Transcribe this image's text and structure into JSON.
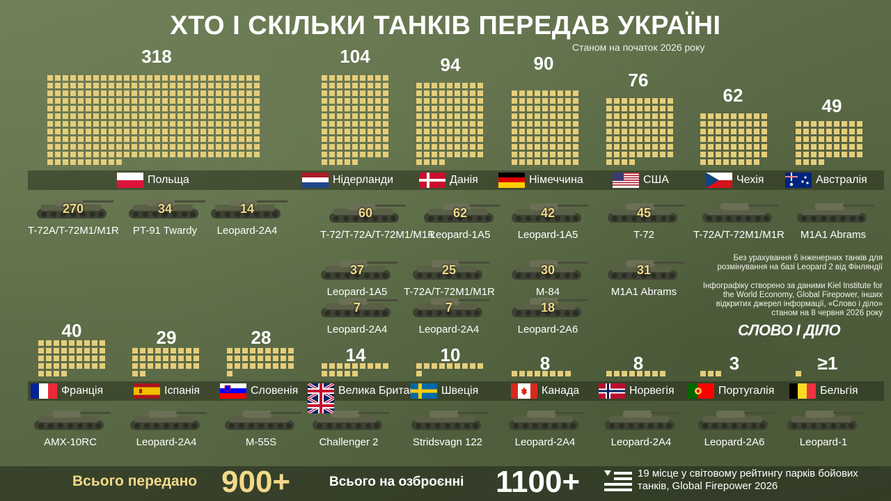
{
  "title": "ХТО І СКІЛЬКИ ТАНКІВ ПЕРЕДАВ УКРАЇНІ",
  "subtitle": "Станом на початок 2026 року",
  "chart_data": {
    "type": "bar",
    "title": "ХТО І СКІЛЬКИ ТАНКІВ ПЕРЕДАВ УКРАЇНІ",
    "categories": [
      "Польща",
      "Нідерланди",
      "Данія",
      "Німеччина",
      "США",
      "Чехія",
      "Австралія",
      "Франція",
      "Іспанія",
      "Словенія",
      "Велика Британія",
      "Швеція",
      "Канада",
      "Норвегія",
      "Португалія",
      "Бельгія"
    ],
    "values": [
      318,
      104,
      94,
      90,
      76,
      62,
      49,
      40,
      29,
      28,
      14,
      10,
      8,
      8,
      3,
      1
    ]
  },
  "countries": [
    {
      "name": "Польща",
      "total": "318",
      "flag": "pl",
      "tanks": [
        {
          "model": "T-72A/T-72M1/M1R",
          "count": "270"
        },
        {
          "model": "PT-91 Twardy",
          "count": "34"
        },
        {
          "model": "Leopard-2A4",
          "count": "14"
        }
      ]
    },
    {
      "name": "Нідерланди",
      "total": "104",
      "flag": "nl",
      "tanks": [
        {
          "model": "T-72/T-72A/T-72M1/M1R",
          "count": "60"
        },
        {
          "model": "Leopard-1A5",
          "count": "37"
        },
        {
          "model": "Leopard-2A4",
          "count": "7"
        }
      ]
    },
    {
      "name": "Данія",
      "total": "94",
      "flag": "dk",
      "tanks": [
        {
          "model": "Leopard-1A5",
          "count": "62"
        },
        {
          "model": "T-72A/T-72M1/M1R",
          "count": "25"
        },
        {
          "model": "Leopard-2A4",
          "count": "7"
        }
      ]
    },
    {
      "name": "Німеччина",
      "total": "90",
      "flag": "de",
      "tanks": [
        {
          "model": "Leopard-1A5",
          "count": "42"
        },
        {
          "model": "M-84",
          "count": "30"
        },
        {
          "model": "Leopard-2A6",
          "count": "18"
        }
      ]
    },
    {
      "name": "США",
      "total": "76",
      "flag": "us",
      "tanks": [
        {
          "model": "T-72",
          "count": "45"
        },
        {
          "model": "M1A1 Abrams",
          "count": "31"
        }
      ]
    },
    {
      "name": "Чехія",
      "total": "62",
      "flag": "cz",
      "tanks": [
        {
          "model": "T-72A/T-72M1/M1R",
          "count": ""
        }
      ]
    },
    {
      "name": "Австралія",
      "total": "49",
      "flag": "au",
      "tanks": [
        {
          "model": "M1A1 Abrams",
          "count": ""
        }
      ]
    },
    {
      "name": "Франція",
      "total": "40",
      "flag": "fr",
      "tanks": [
        {
          "model": "AMX-10RC",
          "count": ""
        }
      ]
    },
    {
      "name": "Іспанія",
      "total": "29",
      "flag": "es",
      "tanks": [
        {
          "model": "Leopard-2A4",
          "count": ""
        }
      ]
    },
    {
      "name": "Словенія",
      "total": "28",
      "flag": "si",
      "tanks": [
        {
          "model": "M-55S",
          "count": ""
        }
      ]
    },
    {
      "name": "Велика Британія",
      "total": "14",
      "flag": "gb",
      "tanks": [
        {
          "model": "Challenger 2",
          "count": ""
        }
      ]
    },
    {
      "name": "Швеція",
      "total": "10",
      "flag": "se",
      "tanks": [
        {
          "model": "Stridsvagn 122",
          "count": ""
        }
      ]
    },
    {
      "name": "Канада",
      "total": "8",
      "flag": "ca",
      "tanks": [
        {
          "model": "Leopard-2A4",
          "count": ""
        }
      ]
    },
    {
      "name": "Норвегія",
      "total": "8",
      "flag": "no",
      "tanks": [
        {
          "model": "Leopard-2A4",
          "count": ""
        }
      ]
    },
    {
      "name": "Португалія",
      "total": "3",
      "flag": "pt",
      "tanks": [
        {
          "model": "Leopard-2A6",
          "count": ""
        }
      ]
    },
    {
      "name": "Бельгія",
      "total": "≥1",
      "flag": "be",
      "tanks": [
        {
          "model": "Leopard-1",
          "count": ""
        }
      ]
    }
  ],
  "notes": {
    "finland": "Без урахування 6 інженерних танків для розмінування на базі Leopard 2 від Фінляндії",
    "sources": "Інфографіку створено за даними Kiel Institute for the World Economy, Global Firepower, інших відкритих джерел інформації, «Слово і діло» станом на 8 червня 2026 року"
  },
  "logo": "СЛОВО І ДІЛО",
  "footer": {
    "transferred_label": "Всього передано",
    "transferred_value": "900+",
    "armed_label": "Всього на озброєнні",
    "armed_value": "1100+",
    "rank_text": "19 місце у світовому рейтингу парків бойових танків, Global Firepower 2026"
  },
  "colors": {
    "square": "#e6cd7a",
    "accent": "#f2d98a",
    "background": "#5c6b47"
  }
}
